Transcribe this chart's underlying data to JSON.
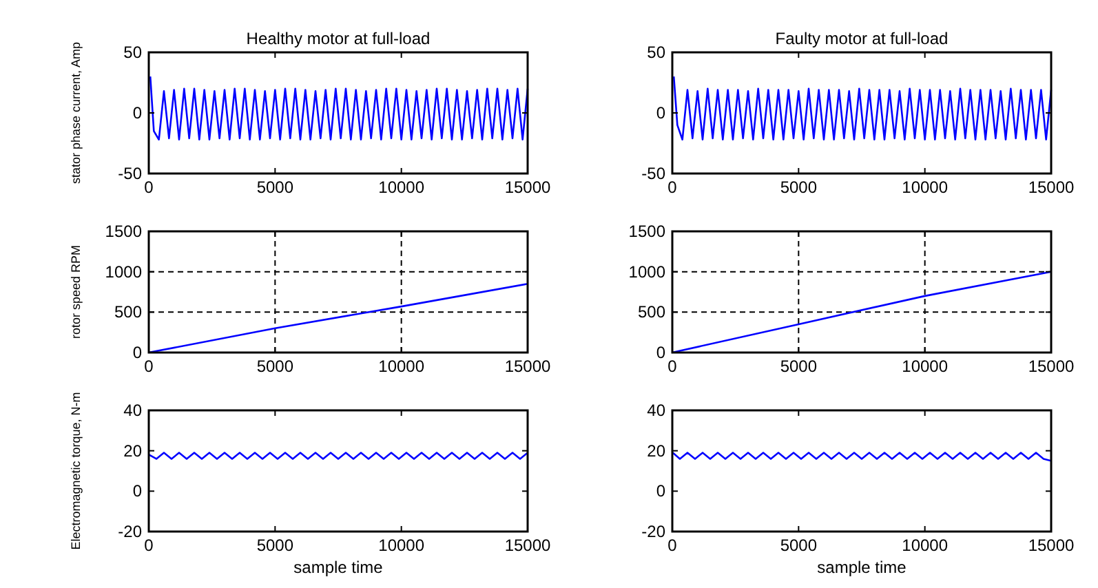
{
  "chart_data": [
    {
      "type": "line",
      "title": "Healthy motor at full-load",
      "ylabel": "stator phase current, Amp",
      "xlim": [
        0,
        15000
      ],
      "xticks": [
        0,
        5000,
        10000,
        15000
      ],
      "ylim": [
        -50,
        50
      ],
      "yticks": [
        -50,
        0,
        50
      ],
      "grid": false,
      "series": [
        {
          "color": "#0000ff",
          "x": [
            60,
            200,
            400,
            600,
            800,
            1000,
            1200,
            1400,
            1600,
            1800,
            2000,
            2200,
            2400,
            2600,
            2800,
            3000,
            3200,
            3400,
            3600,
            3800,
            4000,
            4200,
            4400,
            4600,
            4800,
            5000,
            5200,
            5400,
            5600,
            5800,
            6000,
            6200,
            6400,
            6600,
            6800,
            7000,
            7200,
            7400,
            7600,
            7800,
            8000,
            8200,
            8400,
            8600,
            8800,
            9000,
            9200,
            9400,
            9600,
            9800,
            10000,
            10200,
            10400,
            10600,
            10800,
            11000,
            11200,
            11400,
            11600,
            11800,
            12000,
            12200,
            12400,
            12600,
            12800,
            13000,
            13200,
            13400,
            13600,
            13800,
            14000,
            14200,
            14400,
            14600,
            14800,
            15000
          ],
          "values": [
            30,
            -15,
            -22,
            18,
            -21,
            19,
            -22,
            20,
            -21,
            20,
            -22,
            19,
            -22,
            18,
            -21,
            19,
            -22,
            20,
            -21,
            20,
            -22,
            19,
            -22,
            18,
            -21,
            19,
            -22,
            20,
            -21,
            20,
            -22,
            19,
            -22,
            18,
            -21,
            19,
            -22,
            20,
            -21,
            20,
            -22,
            19,
            -22,
            18,
            -21,
            19,
            -22,
            20,
            -21,
            20,
            -22,
            19,
            -22,
            18,
            -21,
            19,
            -22,
            20,
            -21,
            20,
            -22,
            19,
            -22,
            18,
            -21,
            19,
            -22,
            20,
            -21,
            20,
            -22,
            19,
            -21,
            20,
            -22,
            20
          ]
        }
      ]
    },
    {
      "type": "line",
      "title": "Faulty motor at full-load",
      "xlim": [
        0,
        15000
      ],
      "xticks": [
        0,
        5000,
        10000,
        15000
      ],
      "ylim": [
        -50,
        50
      ],
      "yticks": [
        -50,
        0,
        50
      ],
      "grid": false,
      "series": [
        {
          "color": "#0000ff",
          "x": [
            60,
            200,
            400,
            600,
            800,
            1000,
            1200,
            1400,
            1600,
            1800,
            2000,
            2200,
            2400,
            2600,
            2800,
            3000,
            3200,
            3400,
            3600,
            3800,
            4000,
            4200,
            4400,
            4600,
            4800,
            5000,
            5200,
            5400,
            5600,
            5800,
            6000,
            6200,
            6400,
            6600,
            6800,
            7000,
            7200,
            7400,
            7600,
            7800,
            8000,
            8200,
            8400,
            8600,
            8800,
            9000,
            9200,
            9400,
            9600,
            9800,
            10000,
            10200,
            10400,
            10600,
            10800,
            11000,
            11200,
            11400,
            11600,
            11800,
            12000,
            12200,
            12400,
            12600,
            12800,
            13000,
            13200,
            13400,
            13600,
            13800,
            14000,
            14200,
            14400,
            14600,
            14800,
            15000
          ],
          "values": [
            30,
            -10,
            -22,
            19,
            -21,
            18,
            -22,
            20,
            -21,
            19,
            -22,
            19,
            -22,
            19,
            -21,
            18,
            -22,
            20,
            -21,
            19,
            -22,
            19,
            -22,
            19,
            -21,
            18,
            -22,
            20,
            -21,
            19,
            -22,
            19,
            -22,
            19,
            -21,
            18,
            -22,
            20,
            -21,
            19,
            -22,
            19,
            -22,
            19,
            -21,
            18,
            -22,
            20,
            -21,
            19,
            -22,
            19,
            -22,
            19,
            -21,
            18,
            -22,
            20,
            -21,
            19,
            -22,
            19,
            -22,
            19,
            -21,
            18,
            -22,
            20,
            -21,
            19,
            -22,
            19,
            -21,
            19,
            -22,
            19
          ]
        }
      ]
    },
    {
      "type": "line",
      "ylabel": "rotor speed RPM",
      "xlim": [
        0,
        15000
      ],
      "xticks": [
        0,
        5000,
        10000,
        15000
      ],
      "ylim": [
        0,
        1500
      ],
      "yticks": [
        0,
        500,
        1000,
        1500
      ],
      "grid": true,
      "series": [
        {
          "color": "#0000ff",
          "x": [
            0,
            5000,
            10000,
            15000
          ],
          "values": [
            0,
            300,
            570,
            850
          ]
        }
      ]
    },
    {
      "type": "line",
      "xlim": [
        0,
        15000
      ],
      "xticks": [
        0,
        5000,
        10000,
        15000
      ],
      "ylim": [
        0,
        1500
      ],
      "yticks": [
        0,
        500,
        1000,
        1500
      ],
      "grid": true,
      "series": [
        {
          "color": "#0000ff",
          "x": [
            0,
            5000,
            10000,
            15000
          ],
          "values": [
            0,
            350,
            700,
            1000
          ]
        }
      ]
    },
    {
      "type": "line",
      "ylabel": "Electromagnetic torque, N-m",
      "xlabel": "sample time",
      "xlim": [
        0,
        15000
      ],
      "xticks": [
        0,
        5000,
        10000,
        15000
      ],
      "ylim": [
        -20,
        40
      ],
      "yticks": [
        -20,
        0,
        20,
        40
      ],
      "grid": false,
      "series": [
        {
          "color": "#0000ff",
          "x": [
            20,
            300,
            600,
            900,
            1200,
            1500,
            1800,
            2100,
            2400,
            2700,
            3000,
            3300,
            3600,
            3900,
            4200,
            4500,
            4800,
            5100,
            5400,
            5700,
            6000,
            6300,
            6600,
            6900,
            7200,
            7500,
            7800,
            8100,
            8400,
            8700,
            9000,
            9300,
            9600,
            9900,
            10200,
            10500,
            10800,
            11100,
            11400,
            11700,
            12000,
            12300,
            12600,
            12900,
            13200,
            13500,
            13800,
            14100,
            14400,
            14700,
            15000
          ],
          "values": [
            18,
            16,
            19,
            16,
            19,
            16,
            19,
            16,
            19,
            16,
            19,
            16,
            19,
            16,
            19,
            16,
            19,
            16,
            19,
            16,
            19,
            16,
            19,
            16,
            19,
            16,
            19,
            16,
            19,
            16,
            19,
            16,
            19,
            16,
            19,
            16,
            19,
            16,
            19,
            16,
            19,
            16,
            19,
            16,
            19,
            16,
            19,
            16,
            19,
            16,
            19
          ]
        }
      ]
    },
    {
      "type": "line",
      "xlabel": "sample time",
      "xlim": [
        0,
        15000
      ],
      "xticks": [
        0,
        5000,
        10000,
        15000
      ],
      "ylim": [
        -20,
        40
      ],
      "yticks": [
        -20,
        0,
        20,
        40
      ],
      "grid": false,
      "series": [
        {
          "color": "#0000ff",
          "x": [
            20,
            300,
            600,
            900,
            1200,
            1500,
            1800,
            2100,
            2400,
            2700,
            3000,
            3300,
            3600,
            3900,
            4200,
            4500,
            4800,
            5100,
            5400,
            5700,
            6000,
            6300,
            6600,
            6900,
            7200,
            7500,
            7800,
            8100,
            8400,
            8700,
            9000,
            9300,
            9600,
            9900,
            10200,
            10500,
            10800,
            11100,
            11400,
            11700,
            12000,
            12300,
            12600,
            12900,
            13200,
            13500,
            13800,
            14100,
            14400,
            14700,
            15000
          ],
          "values": [
            19,
            16,
            19,
            16,
            19,
            16,
            19,
            16,
            19,
            16,
            19,
            16,
            19,
            16,
            19,
            16,
            19,
            16,
            19,
            16,
            19,
            16,
            19,
            16,
            19,
            16,
            19,
            16,
            19,
            16,
            19,
            16,
            19,
            16,
            19,
            16,
            19,
            16,
            19,
            16,
            19,
            16,
            19,
            16,
            19,
            16,
            19,
            16,
            19,
            16,
            15
          ]
        }
      ]
    }
  ]
}
